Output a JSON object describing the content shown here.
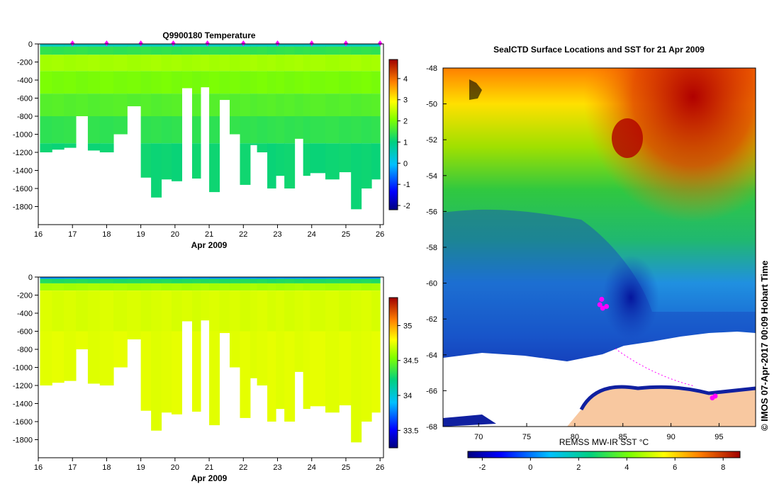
{
  "chart_data": [
    {
      "type": "heatmap",
      "title": "Q9900180  Temperature",
      "xlabel": "Apr 2009",
      "ylabel": "",
      "x_ticks": [
        "16",
        "17",
        "18",
        "19",
        "20",
        "21",
        "22",
        "23",
        "24",
        "25",
        "26"
      ],
      "xlim": [
        16,
        26.1
      ],
      "y_ticks": [
        "0",
        "-200",
        "-400",
        "-600",
        "-800",
        "-1000",
        "-1200",
        "-1400",
        "-1600",
        "-1800"
      ],
      "ylim": [
        -2000,
        0
      ],
      "colorbar_ticks": [
        "4",
        "3",
        "2",
        "1",
        "0",
        "-1",
        "-2"
      ],
      "colorbar_range": [
        -2.2,
        4.9
      ],
      "profile_markers_day": [
        17,
        18,
        19,
        19.95,
        20.95,
        22,
        23,
        24,
        25,
        26
      ],
      "profiles": [
        {
          "day": 16.05,
          "depth": -1200
        },
        {
          "day": 16.4,
          "depth": -1170
        },
        {
          "day": 16.75,
          "depth": -1150
        },
        {
          "day": 17.1,
          "depth": -800
        },
        {
          "day": 17.45,
          "depth": -1180
        },
        {
          "day": 17.8,
          "depth": -1200
        },
        {
          "day": 18.2,
          "depth": -1000
        },
        {
          "day": 18.6,
          "depth": -690
        },
        {
          "day": 19.0,
          "depth": -1480
        },
        {
          "day": 19.3,
          "depth": -1700
        },
        {
          "day": 19.6,
          "depth": -1500
        },
        {
          "day": 19.9,
          "depth": -1520
        },
        {
          "day": 20.2,
          "depth": -490
        },
        {
          "day": 20.5,
          "depth": -1490
        },
        {
          "day": 20.75,
          "depth": -480
        },
        {
          "day": 21.0,
          "depth": -1640
        },
        {
          "day": 21.3,
          "depth": -620
        },
        {
          "day": 21.6,
          "depth": -1000
        },
        {
          "day": 21.9,
          "depth": -1560
        },
        {
          "day": 22.2,
          "depth": -1120
        },
        {
          "day": 22.4,
          "depth": -1200
        },
        {
          "day": 22.7,
          "depth": -1600
        },
        {
          "day": 22.95,
          "depth": -1460
        },
        {
          "day": 23.2,
          "depth": -1600
        },
        {
          "day": 23.5,
          "depth": -1050
        },
        {
          "day": 23.75,
          "depth": -1460
        },
        {
          "day": 23.95,
          "depth": -1430
        },
        {
          "day": 24.4,
          "depth": -1500
        },
        {
          "day": 24.8,
          "depth": -1420
        },
        {
          "day": 25.15,
          "depth": -1830
        },
        {
          "day": 25.45,
          "depth": -1600
        },
        {
          "day": 25.75,
          "depth": -1500
        }
      ],
      "temp_layers": [
        {
          "depth": -30,
          "value": 0.5
        },
        {
          "depth": -120,
          "value": 1.4
        },
        {
          "depth": -300,
          "value": 2.3
        },
        {
          "depth": -550,
          "value": 2.0
        },
        {
          "depth": -800,
          "value": 1.7
        },
        {
          "depth": -1100,
          "value": 1.4
        },
        {
          "depth": -1900,
          "value": 1.1
        }
      ]
    },
    {
      "type": "heatmap",
      "title": "",
      "xlabel": "Apr 2009",
      "ylabel": "",
      "x_ticks": [
        "16",
        "17",
        "18",
        "19",
        "20",
        "21",
        "22",
        "23",
        "24",
        "25",
        "26"
      ],
      "xlim": [
        16,
        26.1
      ],
      "y_ticks": [
        "0",
        "-200",
        "-400",
        "-600",
        "-800",
        "-1000",
        "-1200",
        "-1400",
        "-1600",
        "-1800"
      ],
      "ylim": [
        -2000,
        0
      ],
      "colorbar_ticks": [
        "35",
        "34.5",
        "34",
        "33.5"
      ],
      "colorbar_range": [
        33.25,
        35.4
      ],
      "salinity_layers": [
        {
          "depth": -20,
          "value": 33.8
        },
        {
          "depth": -70,
          "value": 34.3
        },
        {
          "depth": -150,
          "value": 34.62
        },
        {
          "depth": -600,
          "value": 34.72
        },
        {
          "depth": -1900,
          "value": 34.74
        }
      ]
    },
    {
      "type": "heatmap",
      "title": "SealCTD Surface Locations and SST for 21 Apr 2009",
      "xlabel": "",
      "x_ticks": [
        "70",
        "75",
        "80",
        "85",
        "90",
        "95"
      ],
      "xlim": [
        66.3,
        98.8
      ],
      "y_ticks": [
        "-48",
        "-50",
        "-52",
        "-54",
        "-56",
        "-58",
        "-60",
        "-62",
        "-64",
        "-66",
        "-68"
      ],
      "ylim": [
        -68,
        -48
      ],
      "colorbar_label": "REMSS MW-IR SST °C",
      "colorbar_ticks": [
        "-2",
        "0",
        "2",
        "4",
        "6",
        "8"
      ],
      "colorbar_range": [
        -2.6,
        8.7
      ],
      "seal_positions": [
        {
          "lon": 82.6,
          "lat": -61.2
        },
        {
          "lon": 82.9,
          "lat": -61.4
        },
        {
          "lon": 83.3,
          "lat": -61.3
        },
        {
          "lon": 82.8,
          "lat": -60.9
        },
        {
          "lon": 94.3,
          "lat": -66.4
        },
        {
          "lon": 94.6,
          "lat": -66.3
        }
      ]
    }
  ],
  "credit": "© IMOS 07-Apr-2017 00:09 Hobart Time",
  "colors": {
    "seal_marker": "#ff00ff",
    "land": "#f8c8a0",
    "ice": "#ffffff"
  }
}
